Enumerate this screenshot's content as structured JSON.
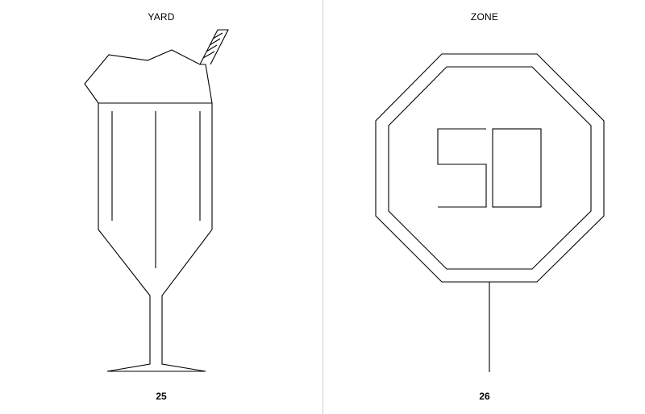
{
  "pages": [
    {
      "word": "YARD",
      "number": "25",
      "illustration": "milkshake-glass"
    },
    {
      "word": "ZONE",
      "number": "26",
      "illustration": "speed-limit-sign"
    }
  ],
  "colors": {
    "background": "#ffffff",
    "ink": "#000000",
    "divider": "#cfcfcf"
  }
}
